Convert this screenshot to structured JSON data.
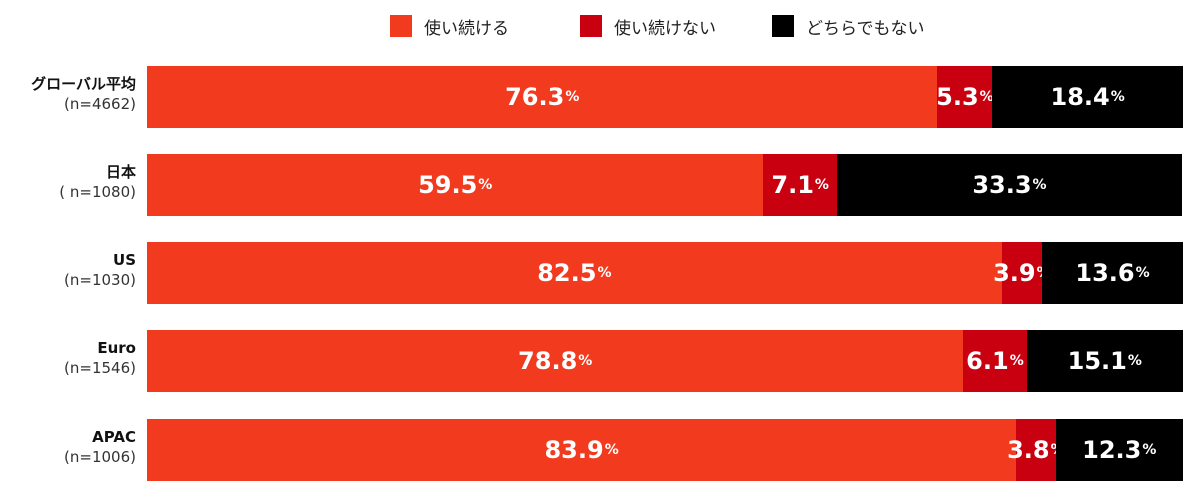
{
  "colors": {
    "continue": "#f23a1e",
    "discontinue": "#c8000f",
    "neither": "#000000"
  },
  "chart_data": {
    "type": "bar",
    "orientation": "horizontal",
    "stacked": true,
    "percent_unit": "%",
    "categories": [
      {
        "name": "グローバル平均",
        "n": "(n=4662)"
      },
      {
        "name": "日本",
        "n": "( n=1080)"
      },
      {
        "name": "US",
        "n": "(n=1030)"
      },
      {
        "name": "Euro",
        "n": "(n=1546)"
      },
      {
        "name": "APAC",
        "n": "(n=1006)"
      }
    ],
    "series": [
      {
        "name": "使い続ける",
        "color": "#f23a1e",
        "values": [
          76.3,
          59.5,
          82.5,
          78.8,
          83.9
        ]
      },
      {
        "name": "使い続けない",
        "color": "#c8000f",
        "values": [
          5.3,
          7.1,
          3.9,
          6.1,
          3.8
        ]
      },
      {
        "name": "どちらでもない",
        "color": "#000000",
        "values": [
          18.4,
          33.3,
          13.6,
          15.1,
          12.3
        ]
      }
    ],
    "value_labels": [
      [
        "76.3",
        "5.3",
        "18.4"
      ],
      [
        "59.5",
        "7.1",
        "33.3"
      ],
      [
        "82.5",
        "3.9",
        "13.6"
      ],
      [
        "78.8",
        "6.1",
        "15.1"
      ],
      [
        "83.9",
        "3.8",
        "12.3"
      ]
    ],
    "legend_position": "top",
    "xlim": [
      0,
      100
    ]
  }
}
